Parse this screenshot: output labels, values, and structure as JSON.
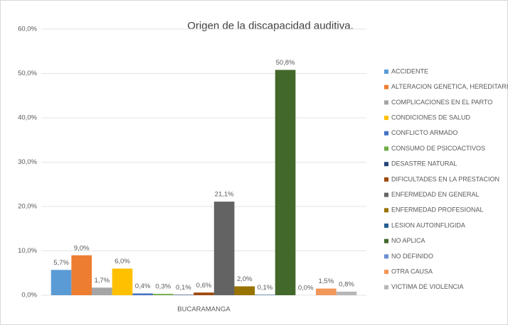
{
  "chart_data": {
    "type": "bar",
    "title": "Origen de la discapacidad auditiva.",
    "categories": [
      "BUCARAMANGA"
    ],
    "ylim": [
      0,
      60
    ],
    "yticks": [
      {
        "value": 0,
        "label": "0,0%"
      },
      {
        "value": 10,
        "label": "10,0%"
      },
      {
        "value": 20,
        "label": "20,0%"
      },
      {
        "value": 30,
        "label": "30,0%"
      },
      {
        "value": 40,
        "label": "40,0%"
      },
      {
        "value": 50,
        "label": "50,0%"
      },
      {
        "value": 60,
        "label": "60,0%"
      }
    ],
    "grid": true,
    "legend": "right",
    "series": [
      {
        "name": "ACCIDENTE",
        "color": "#5b9bd5",
        "values": [
          5.7
        ],
        "value_labels": [
          "5,7%"
        ]
      },
      {
        "name": "ALTERACION GENETICA, HEREDITARIA",
        "color": "#ed7d31",
        "values": [
          9.0
        ],
        "value_labels": [
          "9,0%"
        ]
      },
      {
        "name": "COMPLICACIONES EN EL PARTO",
        "color": "#a5a5a5",
        "values": [
          1.7
        ],
        "value_labels": [
          "1,7%"
        ]
      },
      {
        "name": "CONDICIONES DE SALUD",
        "color": "#ffc000",
        "values": [
          6.0
        ],
        "value_labels": [
          "6,0%"
        ]
      },
      {
        "name": "CONFLICTO ARMADO",
        "color": "#4472c4",
        "values": [
          0.4
        ],
        "value_labels": [
          "0,4%"
        ]
      },
      {
        "name": "CONSUMO DE PSICOACTIVOS",
        "color": "#70ad47",
        "values": [
          0.3
        ],
        "value_labels": [
          "0,3%"
        ]
      },
      {
        "name": "DESASTRE NATURAL",
        "color": "#264478",
        "values": [
          0.1
        ],
        "value_labels": [
          "0,1%"
        ]
      },
      {
        "name": "DIFICULTADES EN LA PRESTACION",
        "color": "#9e480e",
        "values": [
          0.6
        ],
        "value_labels": [
          "0,6%"
        ]
      },
      {
        "name": "ENFERMEDAD EN GENERAL",
        "color": "#636363",
        "values": [
          21.1
        ],
        "value_labels": [
          "21,1%"
        ]
      },
      {
        "name": "ENFERMEDAD PROFESIONAL",
        "color": "#997300",
        "values": [
          2.0
        ],
        "value_labels": [
          "2,0%"
        ]
      },
      {
        "name": "LESION AUTOINFLIGIDA",
        "color": "#255e91",
        "values": [
          0.1
        ],
        "value_labels": [
          "0,1%"
        ]
      },
      {
        "name": "NO APLICA",
        "color": "#43682b",
        "values": [
          50.8
        ],
        "value_labels": [
          "50,8%"
        ]
      },
      {
        "name": "NO DEFINIDO",
        "color": "#698ed0",
        "values": [
          0.0
        ],
        "value_labels": [
          "0,0%"
        ]
      },
      {
        "name": "OTRA CAUSA",
        "color": "#f1975a",
        "values": [
          1.5
        ],
        "value_labels": [
          "1,5%"
        ]
      },
      {
        "name": "VICTIMA DE VIOLENCIA",
        "color": "#b7b7b7",
        "values": [
          0.8
        ],
        "value_labels": [
          "0,8%"
        ]
      }
    ]
  }
}
